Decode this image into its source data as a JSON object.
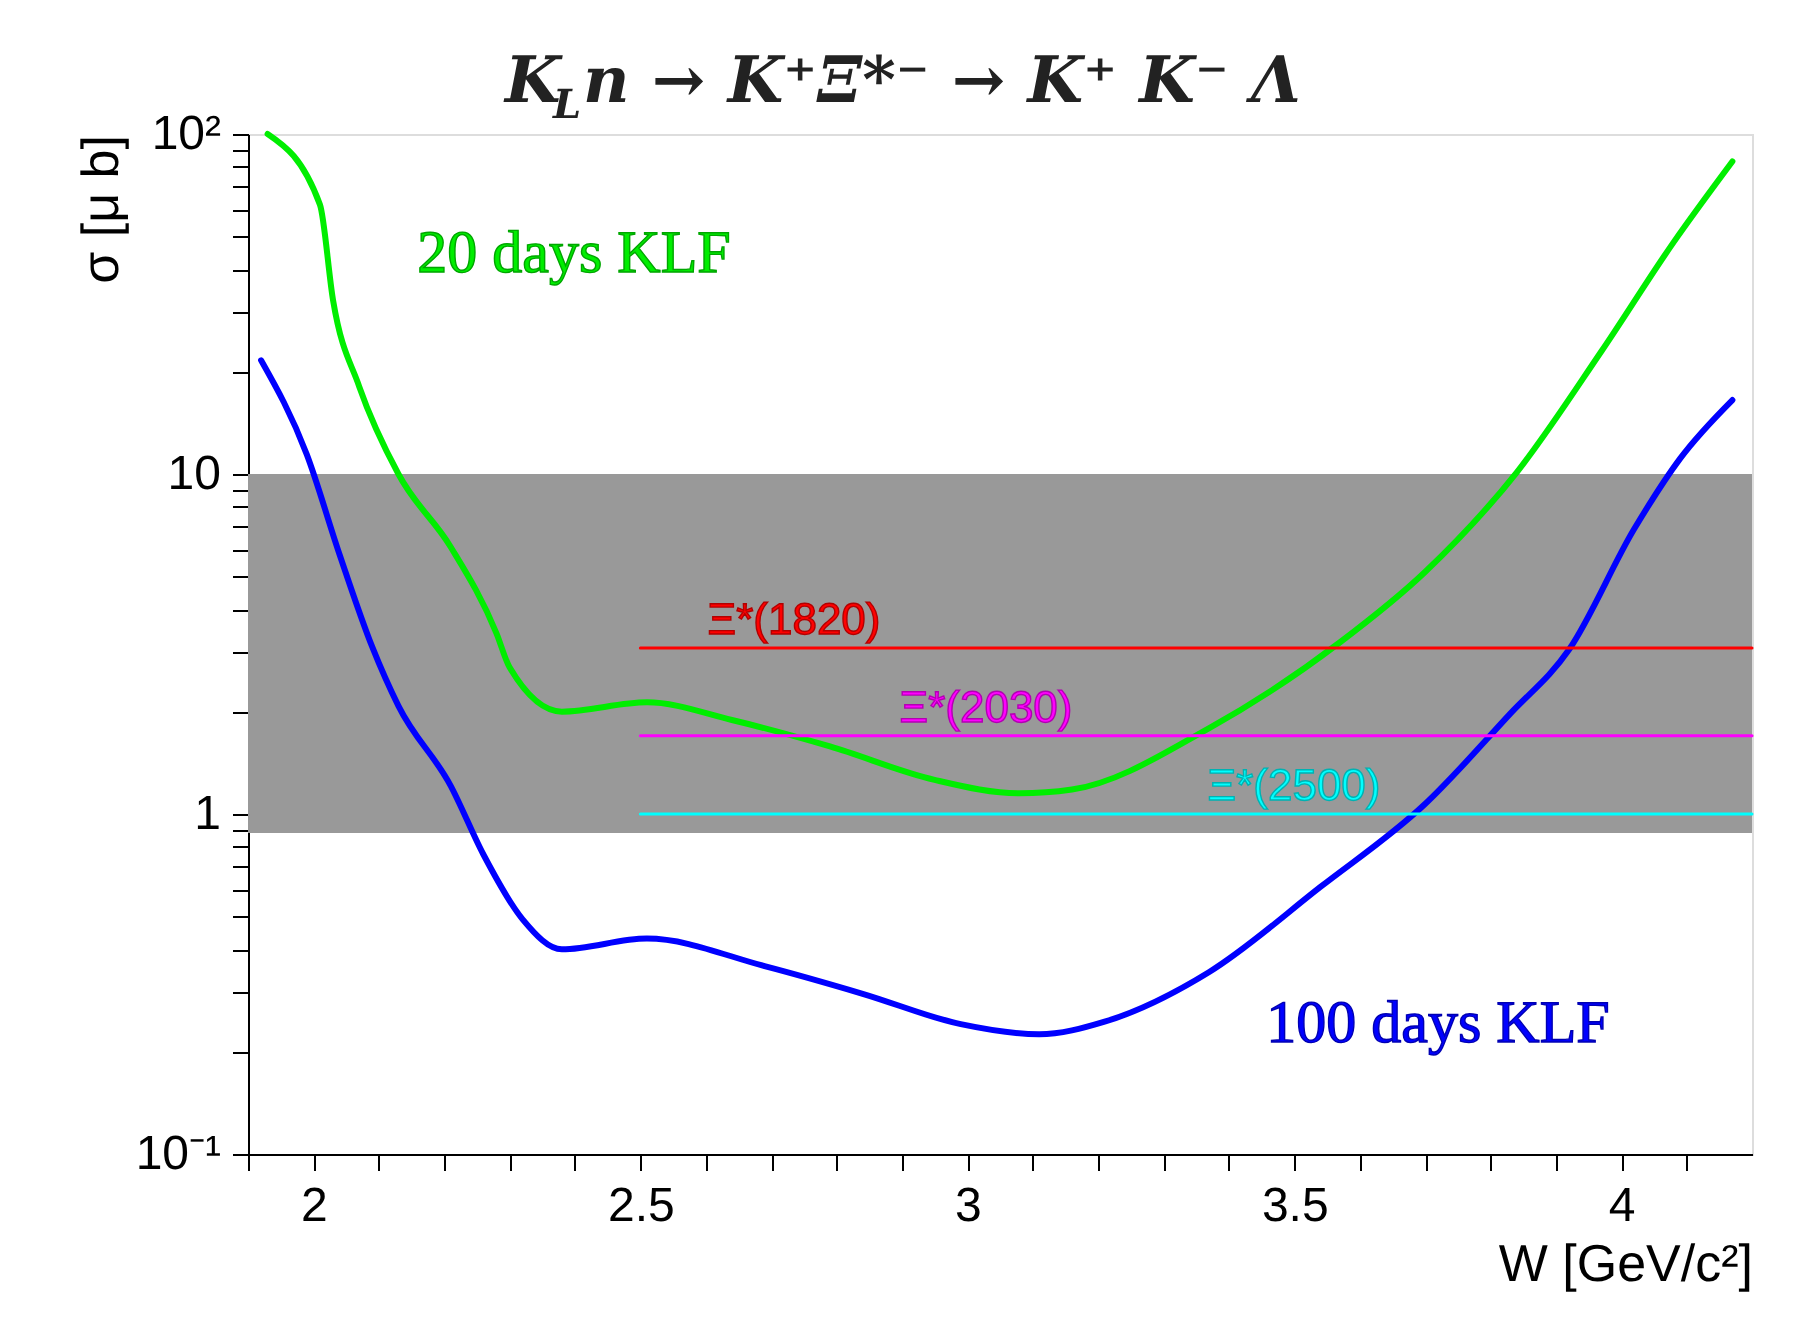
{
  "chart_data": {
    "type": "line",
    "title": "K$_{L}$n → K⁺Ξ*⁻ → K⁺ K⁻ Λ",
    "xlabel": "W [GeV/c²]",
    "ylabel": "σ [μ b]",
    "log": "y",
    "grid": false,
    "xlim": [
      1.9,
      4.2
    ],
    "ylim": [
      0.1,
      100
    ],
    "xticks": [
      {
        "value": 1.9,
        "label": null
      },
      2,
      {
        "value": 2.1,
        "label": null
      },
      {
        "value": 2.2,
        "label": null
      },
      {
        "value": 2.3,
        "label": null
      },
      {
        "value": 2.4,
        "label": null
      },
      2.5,
      {
        "value": 2.6,
        "label": null
      },
      {
        "value": 2.7,
        "label": null
      },
      {
        "value": 2.8,
        "label": null
      },
      {
        "value": 2.9,
        "label": null
      },
      3,
      {
        "value": 3.1,
        "label": null
      },
      {
        "value": 3.2,
        "label": null
      },
      {
        "value": 3.3,
        "label": null
      },
      {
        "value": 3.4,
        "label": null
      },
      3.5,
      {
        "value": 3.6,
        "label": null
      },
      {
        "value": 3.7,
        "label": null
      },
      {
        "value": 3.8,
        "label": null
      },
      {
        "value": 3.9,
        "label": null
      },
      4,
      {
        "value": 4.1,
        "label": null
      }
    ],
    "yticks": [
      {
        "value": 0.1,
        "label": "10⁻¹"
      },
      {
        "value": 0.2,
        "label": null
      },
      {
        "value": 0.3,
        "label": null
      },
      {
        "value": 0.4,
        "label": null
      },
      {
        "value": 0.5,
        "label": null
      },
      {
        "value": 0.6,
        "label": null
      },
      {
        "value": 0.7,
        "label": null
      },
      {
        "value": 0.8,
        "label": null
      },
      {
        "value": 0.9,
        "label": null
      },
      1,
      {
        "value": 2,
        "label": null
      },
      {
        "value": 3,
        "label": null
      },
      {
        "value": 4,
        "label": null
      },
      {
        "value": 5,
        "label": null
      },
      {
        "value": 6,
        "label": null
      },
      {
        "value": 7,
        "label": null
      },
      {
        "value": 8,
        "label": null
      },
      {
        "value": 9,
        "label": null
      },
      10,
      {
        "value": 20,
        "label": null
      },
      {
        "value": 30,
        "label": null
      },
      {
        "value": 40,
        "label": null
      },
      {
        "value": 50,
        "label": null
      },
      {
        "value": 60,
        "label": null
      },
      {
        "value": 70,
        "label": null
      },
      {
        "value": 80,
        "label": null
      },
      {
        "value": 90,
        "label": null
      },
      {
        "value": 100,
        "label": "10²"
      }
    ],
    "bands": [
      {
        "axis": "y",
        "from": 0.88,
        "to": 10,
        "color": "#999999"
      }
    ],
    "series": [
      {
        "name": "20 days KLF",
        "color": "#00ee00",
        "x": [
          1.93,
          2.01,
          2.03,
          2.07,
          2.13,
          2.21,
          2.28,
          2.3,
          2.38,
          2.51,
          2.64,
          2.79,
          2.95,
          3.08,
          3.16,
          3.37,
          3.57,
          3.7,
          3.84,
          3.97,
          4.08,
          4.17
        ],
        "values": [
          100,
          62,
          32.5,
          18.1,
          10,
          6.1,
          3.4,
          2.7,
          2.0,
          2.13,
          1.89,
          1.58,
          1.26,
          1.15,
          1.18,
          1.79,
          3.2,
          5.15,
          10.1,
          23,
          48,
          83
        ]
      },
      {
        "name": "100 days KLF",
        "color": "#0000ff",
        "x": [
          1.92,
          1.99,
          2.04,
          2.09,
          2.13,
          2.21,
          2.26,
          2.32,
          2.38,
          2.51,
          2.69,
          2.84,
          2.99,
          3.11,
          3.21,
          3.37,
          3.54,
          3.7,
          3.83,
          3.92,
          4.02,
          4.09,
          4.17
        ],
        "values": [
          21.6,
          11.4,
          5.8,
          3.1,
          2.08,
          1.21,
          0.76,
          0.49,
          0.4,
          0.43,
          0.357,
          0.296,
          0.241,
          0.225,
          0.245,
          0.343,
          0.61,
          1.07,
          1.97,
          3.04,
          6.9,
          11.1,
          16.5
        ]
      },
      {
        "name": "Ξ*(1820)",
        "color": "#ff0000",
        "x": [
          2.5,
          4.2
        ],
        "values": [
          3.08,
          3.08
        ]
      },
      {
        "name": "Ξ*(2030)",
        "color": "#ff00ff",
        "x": [
          2.5,
          4.2
        ],
        "values": [
          1.7,
          1.7
        ]
      },
      {
        "name": "Ξ*(2500)",
        "color": "#00ffff",
        "x": [
          2.5,
          4.2
        ],
        "values": [
          1.0,
          1.0
        ]
      }
    ]
  }
}
